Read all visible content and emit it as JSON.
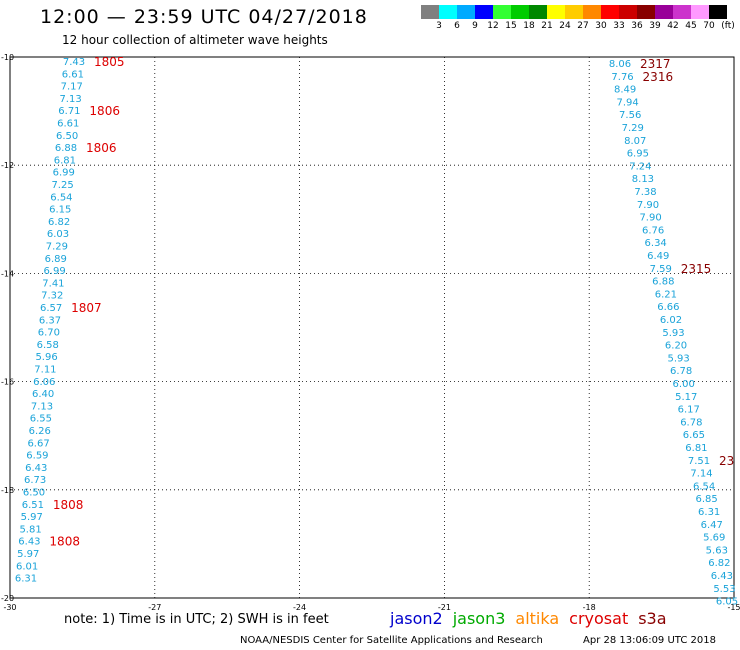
{
  "header": {
    "title": "12:00 — 23:59 UTC 04/27/2018",
    "subtitle": "12 hour collection of altimeter wave heights"
  },
  "legend": {
    "unit": "(ft)",
    "bins": [
      {
        "label": "3",
        "color": "#808080"
      },
      {
        "label": "6",
        "color": "#00ffff"
      },
      {
        "label": "9",
        "color": "#00aaff"
      },
      {
        "label": "12",
        "color": "#0000ff"
      },
      {
        "label": "15",
        "color": "#33ff33"
      },
      {
        "label": "18",
        "color": "#00cc00"
      },
      {
        "label": "21",
        "color": "#008800"
      },
      {
        "label": "24",
        "color": "#ffff00"
      },
      {
        "label": "27",
        "color": "#ffcc00"
      },
      {
        "label": "30",
        "color": "#ff8800"
      },
      {
        "label": "33",
        "color": "#ff0000"
      },
      {
        "label": "36",
        "color": "#cc0000"
      },
      {
        "label": "39",
        "color": "#880000"
      },
      {
        "label": "42",
        "color": "#990099"
      },
      {
        "label": "45",
        "color": "#cc33cc"
      },
      {
        "label": "70",
        "color": "#ff99ff"
      },
      {
        "label": "",
        "color": "#000000"
      }
    ]
  },
  "map": {
    "lon_range": [
      -30,
      -15
    ],
    "lat_range": [
      -20,
      -10
    ],
    "lon_ticks": [
      "-30",
      "-27",
      "-24",
      "-21",
      "-18",
      "-15"
    ],
    "lat_ticks": [
      "-10",
      "-12",
      "-14",
      "-16",
      "-18",
      "-20"
    ],
    "track_west": {
      "color": "#1aa3d9",
      "values": [
        "7.43",
        "6.61",
        "7.17",
        "7.13",
        "6.71",
        "6.61",
        "6.50",
        "6.88",
        "6.81",
        "6.99",
        "7.25",
        "6.54",
        "6.15",
        "6.82",
        "6.03",
        "7.29",
        "6.89",
        "6.99",
        "7.41",
        "7.32",
        "6.57",
        "6.37",
        "6.70",
        "6.58",
        "5.96",
        "7.11",
        "6.06",
        "6.40",
        "7.13",
        "6.55",
        "6.26",
        "6.67",
        "6.59",
        "6.43",
        "6.73",
        "6.50",
        "6.51",
        "5.97",
        "5.81",
        "6.43",
        "5.97",
        "6.01",
        "6.31"
      ],
      "time_labels": [
        {
          "text": "1805",
          "index": 0
        },
        {
          "text": "1806",
          "index": 4
        },
        {
          "text": "1806",
          "index": 7
        },
        {
          "text": "1807",
          "index": 20
        },
        {
          "text": "1808",
          "index": 36
        },
        {
          "text": "1808",
          "index": 39
        }
      ],
      "label_color": "#dd0000"
    },
    "track_east": {
      "color": "#1aa3d9",
      "values": [
        "8.06",
        "7.76",
        "8.49",
        "7.94",
        "7.56",
        "7.29",
        "8.07",
        "6.95",
        "7.24",
        "8.13",
        "7.38",
        "7.90",
        "7.90",
        "6.76",
        "6.34",
        "6.49",
        "7.59",
        "6.88",
        "6.21",
        "6.66",
        "6.02",
        "5.93",
        "6.20",
        "5.93",
        "6.78",
        "6.00",
        "5.17",
        "6.17",
        "6.78",
        "6.65",
        "6.81",
        "7.51",
        "7.14",
        "6.54",
        "6.85",
        "6.31",
        "6.47",
        "5.69",
        "5.63",
        "6.82",
        "6.43",
        "5.53",
        "6.05"
      ],
      "time_labels": [
        {
          "text": "2317",
          "index": 0
        },
        {
          "text": "2316",
          "index": 1
        },
        {
          "text": "2315",
          "index": 16
        },
        {
          "text": "23",
          "index": 31
        }
      ],
      "label_color": "#880000"
    }
  },
  "footer": {
    "note": "note:  1) Time is in UTC;  2) SWH is in feet",
    "satellites": [
      {
        "name": "jason2",
        "color": "#0000cc"
      },
      {
        "name": "jason3",
        "color": "#00aa00"
      },
      {
        "name": "altika",
        "color": "#ff8800"
      },
      {
        "name": "cryosat",
        "color": "#dd0000"
      },
      {
        "name": "s3a",
        "color": "#880000"
      }
    ],
    "credit": "NOAA/NESDIS Center for Satellite Applications and Research",
    "timestamp": "Apr 28 13:06:09 UTC 2018"
  }
}
